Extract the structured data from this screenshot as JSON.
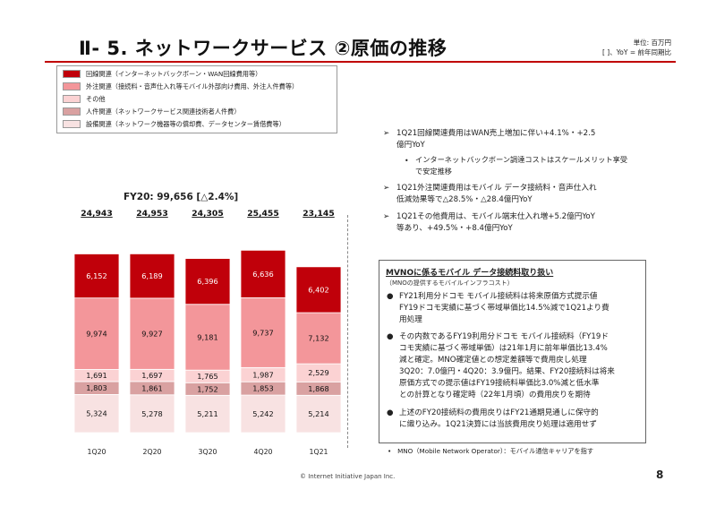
{
  "title": "Ⅱ- 5.  ネットワークサービス  ②原価の推移",
  "unit_note": {
    "line1": "単位: 百万円",
    "line2": "[  ]、YoY = 前年同期比"
  },
  "legend": [
    {
      "label": "回線関連（インターネットバックボーン・WAN回線費用等）",
      "color": "#c0000a"
    },
    {
      "label": "外注関連（接続料・音声仕入れ等モバイル外部向け費用、外注人件費等）",
      "color": "#f3969a"
    },
    {
      "label": "その他",
      "color": "#fbd2d3"
    },
    {
      "label": "人件関連（ネットワークサービス関連技術者人件費）",
      "color": "#d9a1a1"
    },
    {
      "label": "設備関連（ネットワーク機器等の償却費、データセンター賃借費等）",
      "color": "#f8e2e2"
    }
  ],
  "fy_label": "FY20: 99,656 [△2.4%]",
  "chart_data": {
    "type": "bar",
    "stacked": true,
    "categories": [
      "1Q20",
      "2Q20",
      "3Q20",
      "4Q20",
      "1Q21"
    ],
    "totals": [
      "24,943",
      "24,953",
      "24,305",
      "25,455",
      "23,145"
    ],
    "series": [
      {
        "name": "設備関連",
        "color": "#f8e2e2",
        "values": [
          5324,
          5278,
          5211,
          5242,
          5214
        ],
        "labels": [
          "5,324",
          "5,278",
          "5,211",
          "5,242",
          "5,214"
        ]
      },
      {
        "name": "人件関連",
        "color": "#d9a1a1",
        "values": [
          1803,
          1861,
          1752,
          1853,
          1868
        ],
        "labels": [
          "1,803",
          "1,861",
          "1,752",
          "1,853",
          "1,868"
        ]
      },
      {
        "name": "その他",
        "color": "#fbd2d3",
        "values": [
          1691,
          1697,
          1765,
          1987,
          2529
        ],
        "labels": [
          "1,691",
          "1,697",
          "1,765",
          "1,987",
          "2,529"
        ]
      },
      {
        "name": "外注関連",
        "color": "#f3969a",
        "values": [
          9974,
          9927,
          9181,
          9737,
          7132
        ],
        "labels": [
          "9,974",
          "9,927",
          "9,181",
          "9,737",
          "7,132"
        ]
      },
      {
        "name": "回線関連",
        "color": "#c0000a",
        "values": [
          6152,
          6189,
          6396,
          6636,
          6402
        ],
        "labels": [
          "6,152",
          "6,189",
          "6,396",
          "6,636",
          "6,402"
        ]
      }
    ]
  },
  "bullets": {
    "b1_line1": "1Q21回線関連費用はWAN売上増加に伴い+4.1%・+2.5",
    "b1_line2": "億円YoY",
    "b1_sub_line1": "インターネットバックボーン調達コストはスケールメリット享受",
    "b1_sub_line2": "で安定推移",
    "b2_line1": "1Q21外注関連費用はモバイル データ接続料・音声仕入れ",
    "b2_line2": "低減効果等で△28.5%・△28.4億円YoY",
    "b3_line1": "1Q21その他費用は、モバイル端末仕入れ増+5.2億円YoY",
    "b3_line2": "等あり、+49.5%・+8.4億円YoY"
  },
  "mno": {
    "title": "MVNOに係るモバイル データ接続料取り扱い",
    "subtitle": "（MNOの提供するモバイルインフラコスト）",
    "p1": [
      "FY21利用分ドコモ モバイル接続料は将来原価方式提示値",
      "FY19ドコモ実績に基づく帯域単価比14.5%減で1Q21より費",
      "用処理"
    ],
    "p2": [
      "その内数であるFY19利用分ドコモ モバイル接続料（FY19ド",
      "コモ実績に基づく帯域単価）は21年1月に前年単価比13.4%",
      "減と確定。MNO確定値との想定差額等で費用戻し処理",
      "3Q20：7.0億円・4Q20：3.9億円。結果、FY20接続料は将来",
      "原価方式での提示値はFY19接続料単価比3.0%減と低水準",
      "との計算となり確定時（22年1月頃）の費用戻りを期待"
    ],
    "p3": [
      "上述のFY20接続料の費用戻りはFY21通期見通しに保守的",
      "に織り込み。1Q21決算には当該費用戻り処理は適用せず"
    ]
  },
  "footnote": "MNO（Mobile Network Operator）：モバイル通信キャリアを指す",
  "copyright": "© Internet Initiative Japan Inc.",
  "page_number": "8"
}
